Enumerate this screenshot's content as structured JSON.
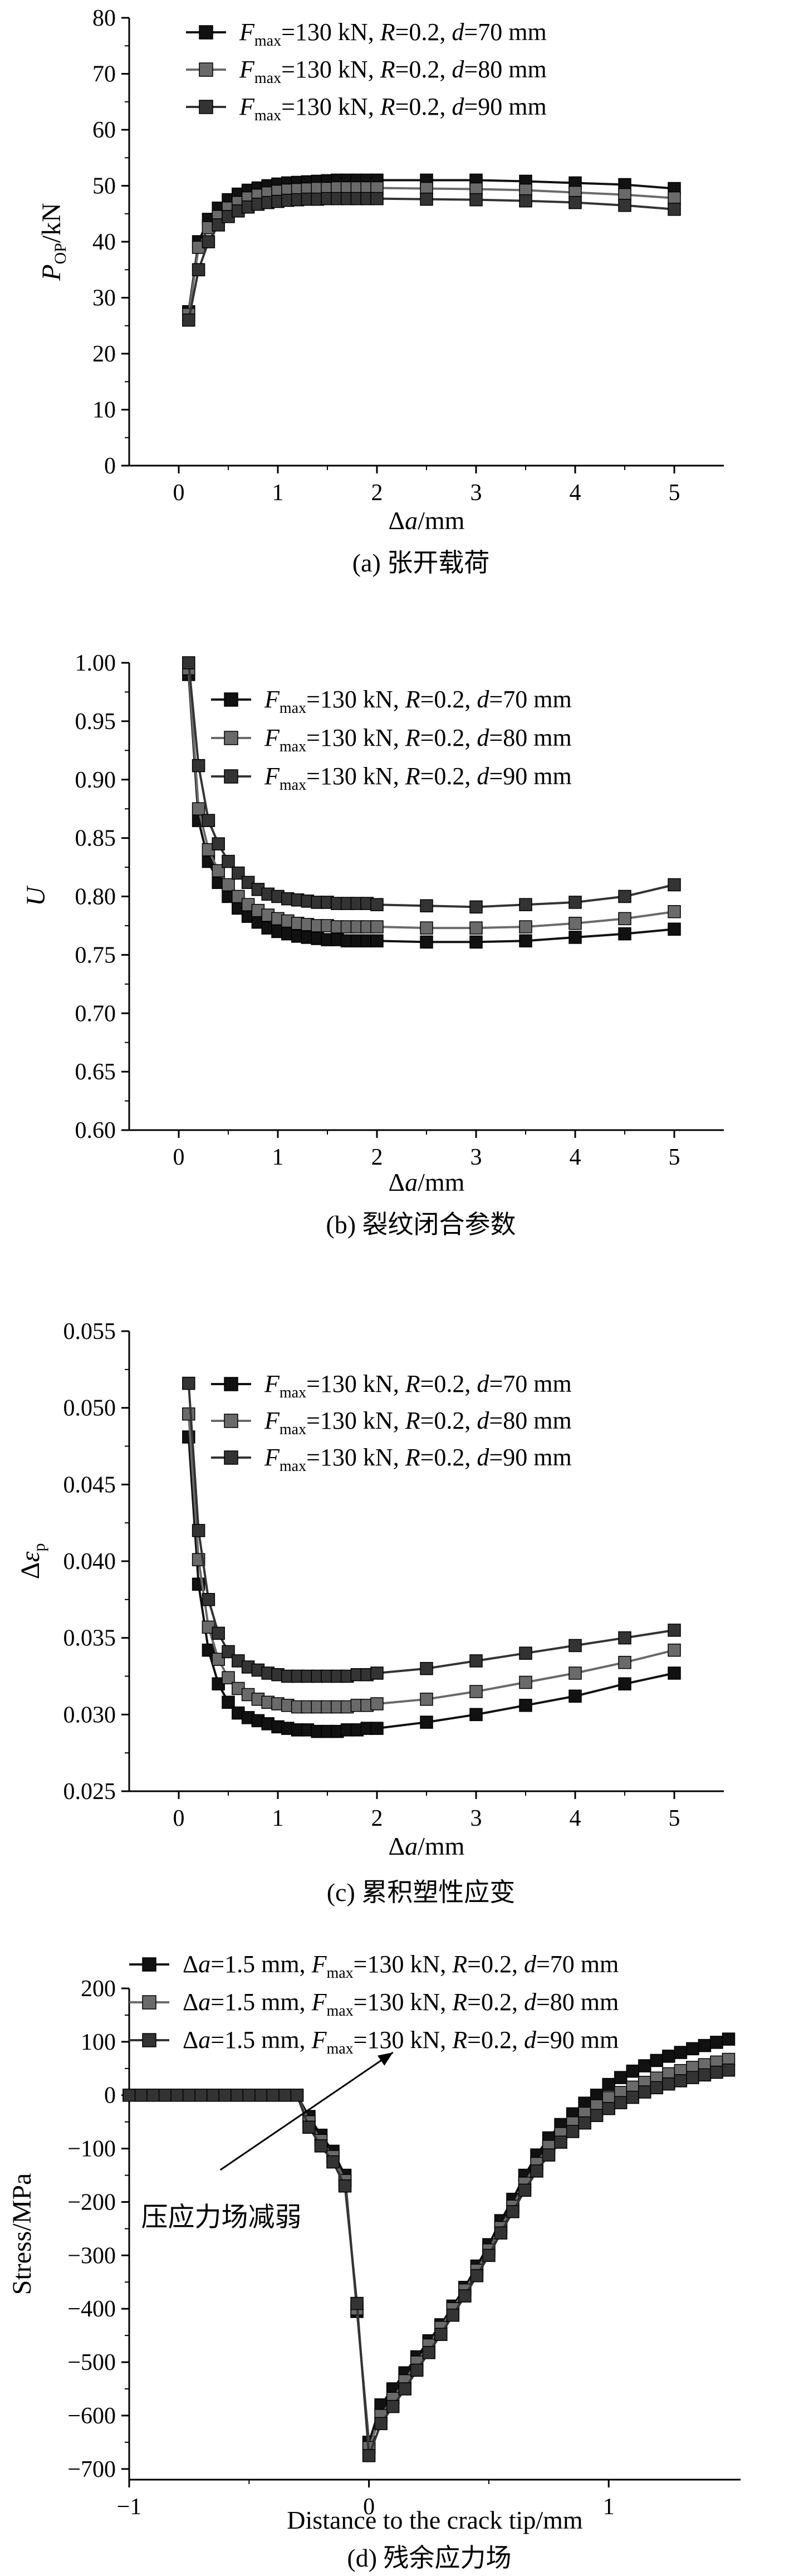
{
  "colors": {
    "d70": "#111111",
    "d80": "#6a6a6a",
    "d90": "#333333",
    "axis": "#000000"
  },
  "legend_tokens": {
    "fmax_main": "F",
    "fmax_sub": "max",
    "fmax_rest": "=130 kN, ",
    "r_main": "R",
    "r_rest": "=0.2, ",
    "d_main": "d",
    "da_prefix_delta": "Δ",
    "da_prefix_a": "a",
    "da_prefix_rest": "=1.5 mm, "
  },
  "chart_data": [
    {
      "id": "a",
      "type": "line",
      "caption": "(a) 张开载荷",
      "xlabel": "Δa/mm",
      "ylabel": "P_OP/kN",
      "xlim": [
        -0.5,
        5.5
      ],
      "ylim": [
        0,
        80
      ],
      "xticks": [
        0,
        1,
        2,
        3,
        4,
        5
      ],
      "yticks": [
        0,
        10,
        20,
        30,
        40,
        50,
        60,
        70,
        80
      ],
      "legend_location": "top-left",
      "series": [
        {
          "name": "Fmax=130 kN, R=0.2, d=70 mm",
          "d_value": "=70 mm",
          "color_key": "d70",
          "x": [
            0.1,
            0.2,
            0.3,
            0.4,
            0.5,
            0.6,
            0.7,
            0.8,
            0.9,
            1.0,
            1.1,
            1.2,
            1.3,
            1.4,
            1.5,
            1.6,
            1.7,
            1.8,
            1.9,
            2.0,
            2.5,
            3.0,
            3.5,
            4.0,
            4.5,
            5.0
          ],
          "y": [
            27.5,
            40,
            44,
            46,
            47.5,
            48.5,
            49.2,
            49.6,
            50,
            50.3,
            50.5,
            50.6,
            50.7,
            50.8,
            50.9,
            51,
            51,
            51,
            51,
            51,
            51,
            51,
            50.8,
            50.5,
            50.2,
            49.5
          ]
        },
        {
          "name": "Fmax=130 kN, R=0.2, d=80 mm",
          "d_value": "=80 mm",
          "color_key": "d80",
          "x": [
            0.1,
            0.2,
            0.3,
            0.4,
            0.5,
            0.6,
            0.7,
            0.8,
            0.9,
            1.0,
            1.1,
            1.2,
            1.3,
            1.4,
            1.5,
            1.6,
            1.7,
            1.8,
            1.9,
            2.0,
            2.5,
            3.0,
            3.5,
            4.0,
            4.5,
            5.0
          ],
          "y": [
            27,
            39,
            42.5,
            44.5,
            46,
            47,
            47.8,
            48.3,
            48.7,
            49,
            49.2,
            49.3,
            49.4,
            49.5,
            49.5,
            49.6,
            49.6,
            49.6,
            49.6,
            49.6,
            49.5,
            49.4,
            49.2,
            48.8,
            48.4,
            47.8
          ]
        },
        {
          "name": "Fmax=130 kN, R=0.2, d=90 mm",
          "d_value": "=90 mm",
          "color_key": "d90",
          "x": [
            0.1,
            0.2,
            0.3,
            0.4,
            0.5,
            0.6,
            0.7,
            0.8,
            0.9,
            1.0,
            1.1,
            1.2,
            1.3,
            1.4,
            1.5,
            1.6,
            1.7,
            1.8,
            1.9,
            2.0,
            2.5,
            3.0,
            3.5,
            4.0,
            4.5,
            5.0
          ],
          "y": [
            26,
            35,
            40,
            43,
            44.5,
            45.5,
            46.2,
            46.7,
            47,
            47.2,
            47.4,
            47.5,
            47.6,
            47.6,
            47.7,
            47.7,
            47.7,
            47.7,
            47.7,
            47.7,
            47.6,
            47.5,
            47.3,
            47,
            46.5,
            45.8
          ]
        }
      ]
    },
    {
      "id": "b",
      "type": "line",
      "caption": "(b) 裂纹闭合参数",
      "xlabel": "Δa/mm",
      "ylabel": "U",
      "xlim": [
        -0.5,
        5.5
      ],
      "ylim": [
        0.6,
        1.0
      ],
      "xticks": [
        0,
        1,
        2,
        3,
        4,
        5
      ],
      "yticks": [
        0.6,
        0.65,
        0.7,
        0.75,
        0.8,
        0.85,
        0.9,
        0.95,
        1.0
      ],
      "ytick_labels": [
        "0.60",
        "0.65",
        "0.70",
        "0.75",
        "0.80",
        "0.85",
        "0.90",
        "0.95",
        "1.00"
      ],
      "legend_location": "top-right",
      "series": [
        {
          "name": "Fmax=130 kN, R=0.2, d=70 mm",
          "d_value": "=70 mm",
          "color_key": "d70",
          "x": [
            0.1,
            0.2,
            0.3,
            0.4,
            0.5,
            0.6,
            0.7,
            0.8,
            0.9,
            1.0,
            1.1,
            1.2,
            1.3,
            1.4,
            1.5,
            1.6,
            1.7,
            1.8,
            1.9,
            2.0,
            2.5,
            3.0,
            3.5,
            4.0,
            4.5,
            5.0
          ],
          "y": [
            0.99,
            0.865,
            0.83,
            0.812,
            0.8,
            0.79,
            0.783,
            0.778,
            0.773,
            0.77,
            0.768,
            0.766,
            0.765,
            0.764,
            0.763,
            0.763,
            0.762,
            0.762,
            0.762,
            0.762,
            0.761,
            0.761,
            0.762,
            0.765,
            0.768,
            0.772
          ]
        },
        {
          "name": "Fmax=130 kN, R=0.2, d=80 mm",
          "d_value": "=80 mm",
          "color_key": "d80",
          "x": [
            0.1,
            0.2,
            0.3,
            0.4,
            0.5,
            0.6,
            0.7,
            0.8,
            0.9,
            1.0,
            1.1,
            1.2,
            1.3,
            1.4,
            1.5,
            1.6,
            1.7,
            1.8,
            1.9,
            2.0,
            2.5,
            3.0,
            3.5,
            4.0,
            4.5,
            5.0
          ],
          "y": [
            0.995,
            0.875,
            0.84,
            0.822,
            0.81,
            0.8,
            0.793,
            0.788,
            0.784,
            0.781,
            0.779,
            0.777,
            0.776,
            0.775,
            0.775,
            0.774,
            0.774,
            0.774,
            0.774,
            0.774,
            0.773,
            0.773,
            0.774,
            0.777,
            0.781,
            0.787
          ]
        },
        {
          "name": "Fmax=130 kN, R=0.2, d=90 mm",
          "d_value": "=90 mm",
          "color_key": "d90",
          "x": [
            0.1,
            0.2,
            0.3,
            0.4,
            0.5,
            0.6,
            0.7,
            0.8,
            0.9,
            1.0,
            1.1,
            1.2,
            1.3,
            1.4,
            1.5,
            1.6,
            1.7,
            1.8,
            1.9,
            2.0,
            2.5,
            3.0,
            3.5,
            4.0,
            4.5,
            5.0
          ],
          "y": [
            1.0,
            0.912,
            0.865,
            0.845,
            0.83,
            0.82,
            0.812,
            0.806,
            0.802,
            0.8,
            0.798,
            0.797,
            0.796,
            0.795,
            0.795,
            0.794,
            0.794,
            0.794,
            0.794,
            0.793,
            0.792,
            0.791,
            0.793,
            0.795,
            0.8,
            0.81
          ]
        }
      ]
    },
    {
      "id": "c",
      "type": "line",
      "caption": "(c) 累积塑性应变",
      "xlabel": "Δa/mm",
      "ylabel": "Δε_p",
      "xlim": [
        -0.5,
        5.5
      ],
      "ylim": [
        0.025,
        0.055
      ],
      "xticks": [
        0,
        1,
        2,
        3,
        4,
        5
      ],
      "yticks": [
        0.025,
        0.03,
        0.035,
        0.04,
        0.045,
        0.05,
        0.055
      ],
      "ytick_labels": [
        "0.025",
        "0.030",
        "0.035",
        "0.040",
        "0.045",
        "0.050",
        "0.055"
      ],
      "legend_location": "top-right",
      "series": [
        {
          "name": "Fmax=130 kN, R=0.2, d=70 mm",
          "d_value": "=70 mm",
          "color_key": "d70",
          "x": [
            0.1,
            0.2,
            0.3,
            0.4,
            0.5,
            0.6,
            0.7,
            0.8,
            0.9,
            1.0,
            1.1,
            1.2,
            1.3,
            1.4,
            1.5,
            1.6,
            1.7,
            1.8,
            1.9,
            2.0,
            2.5,
            3.0,
            3.5,
            4.0,
            4.5,
            5.0
          ],
          "y": [
            0.0481,
            0.0385,
            0.0342,
            0.032,
            0.0308,
            0.0301,
            0.0298,
            0.0296,
            0.0294,
            0.0292,
            0.0291,
            0.029,
            0.029,
            0.0289,
            0.0289,
            0.0289,
            0.029,
            0.029,
            0.0291,
            0.0291,
            0.0295,
            0.03,
            0.0306,
            0.0312,
            0.032,
            0.0327
          ]
        },
        {
          "name": "Fmax=130 kN, R=0.2, d=80 mm",
          "d_value": "=80 mm",
          "color_key": "d80",
          "x": [
            0.1,
            0.2,
            0.3,
            0.4,
            0.5,
            0.6,
            0.7,
            0.8,
            0.9,
            1.0,
            1.1,
            1.2,
            1.3,
            1.4,
            1.5,
            1.6,
            1.7,
            1.8,
            1.9,
            2.0,
            2.5,
            3.0,
            3.5,
            4.0,
            4.5,
            5.0
          ],
          "y": [
            0.0496,
            0.0401,
            0.0357,
            0.0336,
            0.0324,
            0.0317,
            0.0313,
            0.031,
            0.0308,
            0.0307,
            0.0306,
            0.0305,
            0.0305,
            0.0305,
            0.0305,
            0.0305,
            0.0305,
            0.0306,
            0.0306,
            0.0307,
            0.031,
            0.0315,
            0.0321,
            0.0327,
            0.0334,
            0.0342
          ]
        },
        {
          "name": "Fmax=130 kN, R=0.2, d=90 mm",
          "d_value": "=90 mm",
          "color_key": "d90",
          "x": [
            0.1,
            0.2,
            0.3,
            0.4,
            0.5,
            0.6,
            0.7,
            0.8,
            0.9,
            1.0,
            1.1,
            1.2,
            1.3,
            1.4,
            1.5,
            1.6,
            1.7,
            1.8,
            1.9,
            2.0,
            2.5,
            3.0,
            3.5,
            4.0,
            4.5,
            5.0
          ],
          "y": [
            0.0516,
            0.042,
            0.0375,
            0.0353,
            0.0341,
            0.0335,
            0.0331,
            0.0329,
            0.0327,
            0.0326,
            0.0325,
            0.0325,
            0.0325,
            0.0325,
            0.0325,
            0.0325,
            0.0325,
            0.0326,
            0.0326,
            0.0327,
            0.033,
            0.0335,
            0.034,
            0.0345,
            0.035,
            0.0355
          ]
        }
      ]
    },
    {
      "id": "d",
      "type": "line",
      "caption": "(d) 残余应力场",
      "xlabel": "Distance to the crack tip/mm",
      "ylabel": "Stress/MPa",
      "xlim": [
        -1,
        1.55
      ],
      "ylim": [
        -720,
        200
      ],
      "xticks": [
        -1,
        0,
        1
      ],
      "yticks": [
        -700,
        -600,
        -500,
        -400,
        -300,
        -200,
        -100,
        0,
        100,
        200
      ],
      "legend_location": "top-right",
      "annotation": {
        "text": "压应力场减弱",
        "arrow_from": [
          -0.62,
          -140
        ],
        "arrow_to": [
          0.1,
          80
        ]
      },
      "series": [
        {
          "name": "Δa=1.5 mm, Fmax=130 kN, R=0.2, d=70 mm",
          "d_value": "=70 mm",
          "color_key": "d70",
          "x": [
            -1.0,
            -0.95,
            -0.9,
            -0.85,
            -0.8,
            -0.75,
            -0.7,
            -0.65,
            -0.6,
            -0.55,
            -0.5,
            -0.45,
            -0.4,
            -0.35,
            -0.3,
            -0.25,
            -0.2,
            -0.15,
            -0.1,
            -0.05,
            0.0,
            0.05,
            0.1,
            0.15,
            0.2,
            0.25,
            0.3,
            0.35,
            0.4,
            0.45,
            0.5,
            0.55,
            0.6,
            0.65,
            0.7,
            0.75,
            0.8,
            0.85,
            0.9,
            0.95,
            1.0,
            1.05,
            1.1,
            1.15,
            1.2,
            1.25,
            1.3,
            1.35,
            1.4,
            1.45,
            1.5
          ],
          "y": [
            0,
            0,
            0,
            0,
            0,
            0,
            0,
            0,
            0,
            0,
            0,
            0,
            0,
            0,
            0,
            -40,
            -75,
            -105,
            -150,
            -405,
            -650,
            -580,
            -550,
            -520,
            -490,
            -460,
            -430,
            -395,
            -360,
            -320,
            -280,
            -235,
            -195,
            -150,
            -112,
            -80,
            -55,
            -35,
            -15,
            0,
            20,
            33,
            45,
            55,
            65,
            73,
            80,
            87,
            93,
            99,
            105
          ]
        },
        {
          "name": "Δa=1.5 mm, Fmax=130 kN, R=0.2, d=80 mm",
          "d_value": "=80 mm",
          "color_key": "d80",
          "x": [
            -1.0,
            -0.95,
            -0.9,
            -0.85,
            -0.8,
            -0.75,
            -0.7,
            -0.65,
            -0.6,
            -0.55,
            -0.5,
            -0.45,
            -0.4,
            -0.35,
            -0.3,
            -0.25,
            -0.2,
            -0.15,
            -0.1,
            -0.05,
            0.0,
            0.05,
            0.1,
            0.15,
            0.2,
            0.25,
            0.3,
            0.35,
            0.4,
            0.45,
            0.5,
            0.55,
            0.6,
            0.65,
            0.7,
            0.75,
            0.8,
            0.85,
            0.9,
            0.95,
            1.0,
            1.05,
            1.1,
            1.15,
            1.2,
            1.25,
            1.3,
            1.35,
            1.4,
            1.45,
            1.5
          ],
          "y": [
            0,
            0,
            0,
            0,
            0,
            0,
            0,
            0,
            0,
            0,
            0,
            0,
            0,
            0,
            0,
            -50,
            -85,
            -115,
            -160,
            -400,
            -660,
            -600,
            -568,
            -535,
            -500,
            -468,
            -435,
            -400,
            -365,
            -328,
            -290,
            -248,
            -208,
            -165,
            -128,
            -96,
            -72,
            -52,
            -34,
            -20,
            -5,
            5,
            15,
            24,
            32,
            40,
            46,
            52,
            57,
            62,
            67
          ]
        },
        {
          "name": "Δa=1.5 mm, Fmax=130 kN, R=0.2, d=90 mm",
          "d_value": "=90 mm",
          "color_key": "d90",
          "x": [
            -1.0,
            -0.95,
            -0.9,
            -0.85,
            -0.8,
            -0.75,
            -0.7,
            -0.65,
            -0.6,
            -0.55,
            -0.5,
            -0.45,
            -0.4,
            -0.35,
            -0.3,
            -0.25,
            -0.2,
            -0.15,
            -0.1,
            -0.05,
            0.0,
            0.05,
            0.1,
            0.15,
            0.2,
            0.25,
            0.3,
            0.35,
            0.4,
            0.45,
            0.5,
            0.55,
            0.6,
            0.65,
            0.7,
            0.75,
            0.8,
            0.85,
            0.9,
            0.95,
            1.0,
            1.05,
            1.1,
            1.15,
            1.2,
            1.25,
            1.3,
            1.35,
            1.4,
            1.45,
            1.5
          ],
          "y": [
            0,
            0,
            0,
            0,
            0,
            0,
            0,
            0,
            0,
            0,
            0,
            0,
            0,
            0,
            0,
            -60,
            -95,
            -125,
            -170,
            -390,
            -675,
            -615,
            -583,
            -550,
            -515,
            -482,
            -448,
            -412,
            -376,
            -338,
            -300,
            -258,
            -218,
            -178,
            -142,
            -112,
            -88,
            -68,
            -52,
            -38,
            -25,
            -14,
            -4,
            6,
            14,
            21,
            27,
            33,
            38,
            43,
            47
          ]
        }
      ]
    }
  ]
}
